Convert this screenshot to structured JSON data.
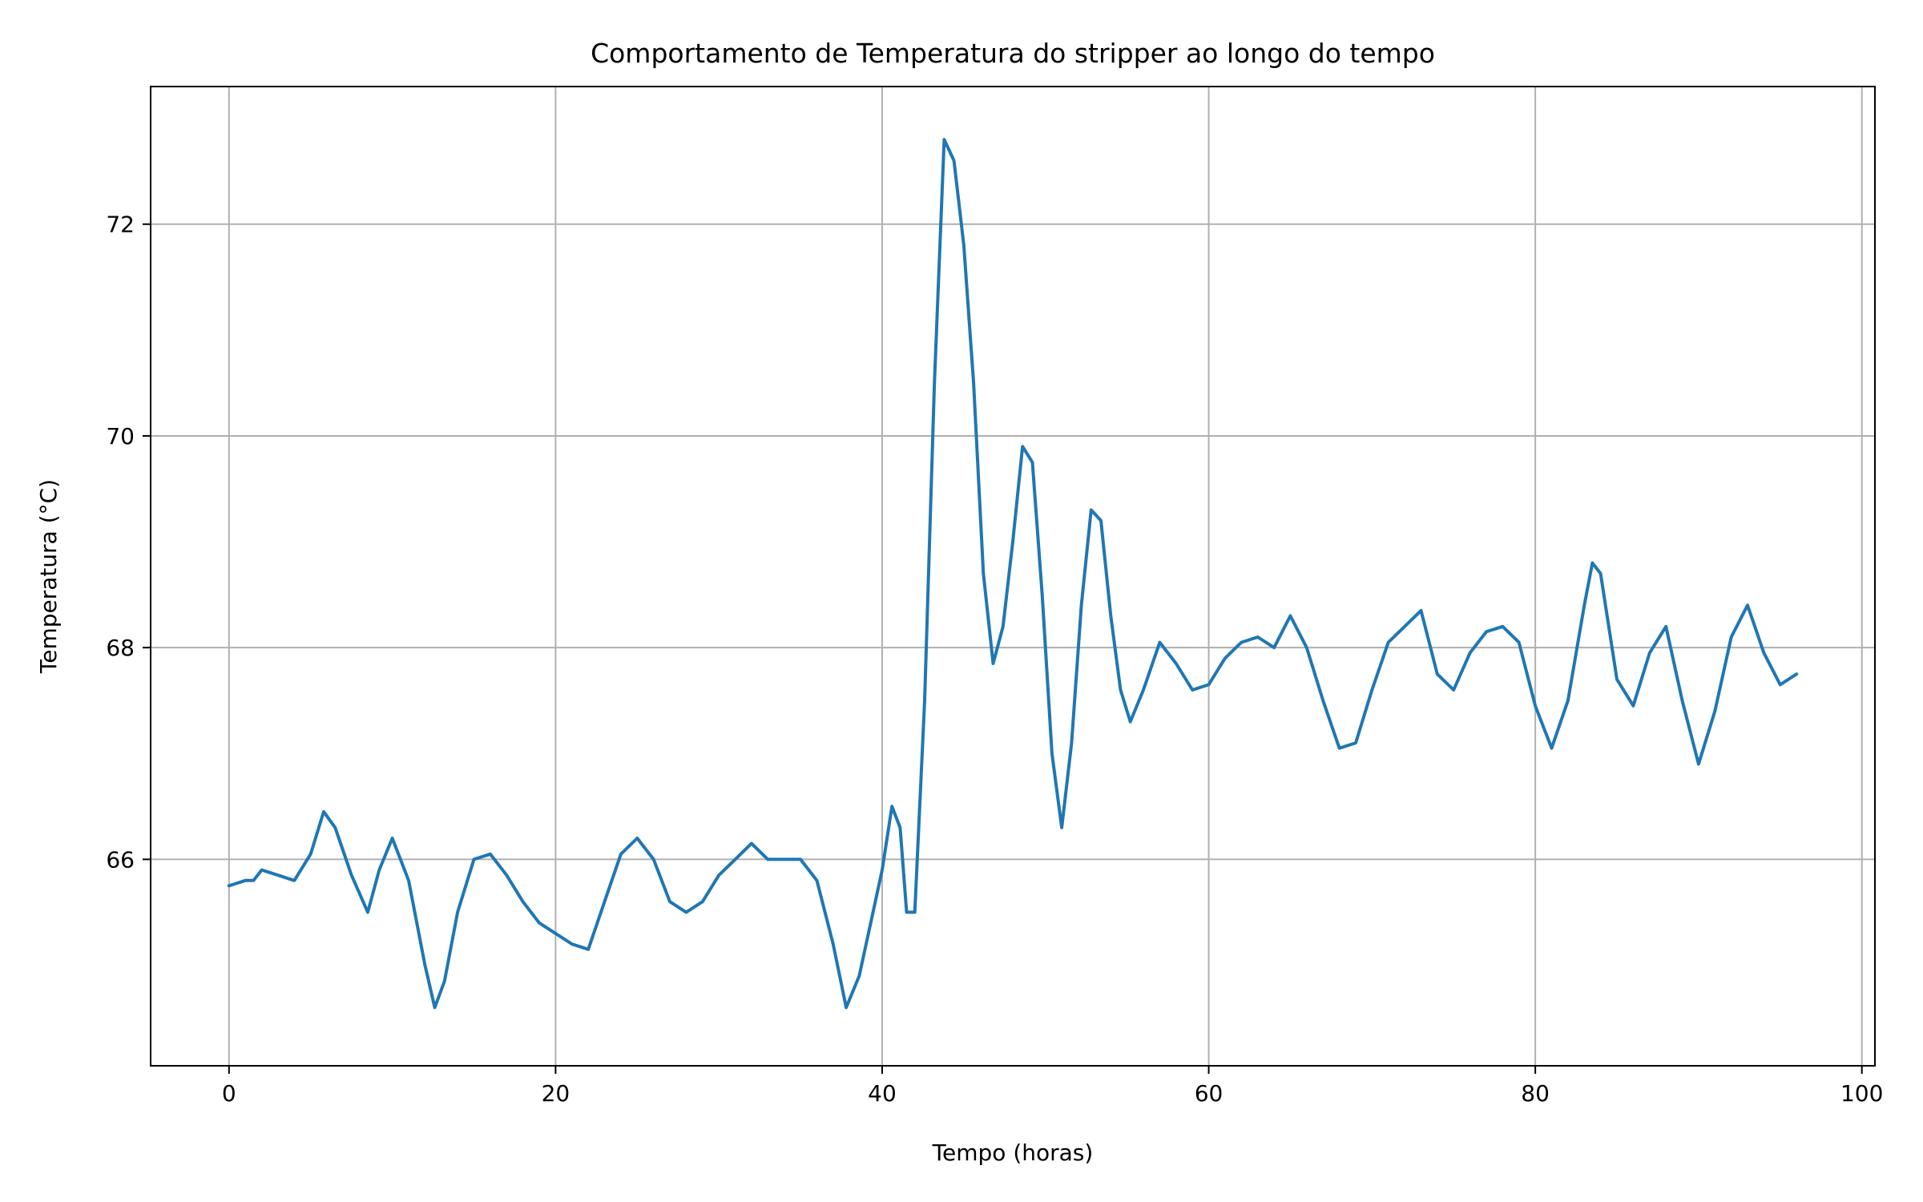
{
  "chart_data": {
    "type": "line",
    "title": "Comportamento de Temperatura do stripper ao longo do tempo",
    "xlabel": "Tempo (horas)",
    "ylabel": "Temperatura (°C)",
    "xlim": [
      -4.8,
      100.8
    ],
    "ylim": [
      64.05,
      73.3
    ],
    "x_ticks": [
      0,
      20,
      40,
      60,
      80,
      100
    ],
    "y_ticks": [
      66,
      68,
      70,
      72
    ],
    "grid": true,
    "colors": {
      "line": "#1f77b4",
      "grid": "#b0b0b0",
      "axes": "#000000"
    },
    "series": [
      {
        "x": [
          0.0,
          1.0,
          1.5,
          2.0,
          3.0,
          4.0,
          5.0,
          5.8,
          6.5,
          7.5,
          8.5,
          9.2,
          10.0,
          11.0,
          12.0,
          12.6,
          13.2,
          14.0,
          15.0,
          16.0,
          17.0,
          18.0,
          19.0,
          20.0,
          21.0,
          22.0,
          23.0,
          24.0,
          25.0,
          26.0,
          27.0,
          28.0,
          29.0,
          30.0,
          31.0,
          32.0,
          33.0,
          34.0,
          35.0,
          36.0,
          37.0,
          37.8,
          38.6,
          39.3,
          40.0,
          40.6,
          41.1,
          41.5,
          42.0,
          42.6,
          43.2,
          43.8,
          44.4,
          45.0,
          45.6,
          46.2,
          46.8,
          47.4,
          48.0,
          48.6,
          49.2,
          49.8,
          50.4,
          51.0,
          51.6,
          52.2,
          52.8,
          53.4,
          54.0,
          54.6,
          55.2,
          56.0,
          57.0,
          58.0,
          59.0,
          60.0,
          61.0,
          62.0,
          63.0,
          64.0,
          65.0,
          66.0,
          67.0,
          68.0,
          69.0,
          70.0,
          71.0,
          72.0,
          73.0,
          74.0,
          75.0,
          76.0,
          77.0,
          78.0,
          79.0,
          80.0,
          81.0,
          82.0,
          83.0,
          83.5,
          84.0,
          85.0,
          86.0,
          87.0,
          88.0,
          89.0,
          90.0,
          91.0,
          92.0,
          93.0,
          94.0,
          95.0,
          96.0
        ],
        "y": [
          65.75,
          65.8,
          65.8,
          65.9,
          65.85,
          65.8,
          66.05,
          66.45,
          66.3,
          65.85,
          65.5,
          65.9,
          66.2,
          65.8,
          65.0,
          64.6,
          64.85,
          65.5,
          66.0,
          66.05,
          65.85,
          65.6,
          65.4,
          65.3,
          65.2,
          65.15,
          65.6,
          66.05,
          66.2,
          66.0,
          65.6,
          65.5,
          65.6,
          65.85,
          66.0,
          66.15,
          66.0,
          66.0,
          66.0,
          65.8,
          65.2,
          64.6,
          64.9,
          65.4,
          65.9,
          66.5,
          66.3,
          65.5,
          65.5,
          67.5,
          70.5,
          72.8,
          72.6,
          71.8,
          70.5,
          68.7,
          67.85,
          68.2,
          69.0,
          69.9,
          69.75,
          68.5,
          67.0,
          66.3,
          67.1,
          68.4,
          69.3,
          69.2,
          68.3,
          67.6,
          67.3,
          67.6,
          68.05,
          67.85,
          67.6,
          67.65,
          67.9,
          68.05,
          68.1,
          68.0,
          68.3,
          68.0,
          67.5,
          67.05,
          67.1,
          67.6,
          68.05,
          68.2,
          68.35,
          67.75,
          67.6,
          67.95,
          68.15,
          68.2,
          68.05,
          67.45,
          67.05,
          67.5,
          68.4,
          68.8,
          68.7,
          67.7,
          67.45,
          67.95,
          68.2,
          67.5,
          66.9,
          67.4,
          68.1,
          68.4,
          67.95,
          67.65,
          67.75
        ]
      }
    ]
  }
}
